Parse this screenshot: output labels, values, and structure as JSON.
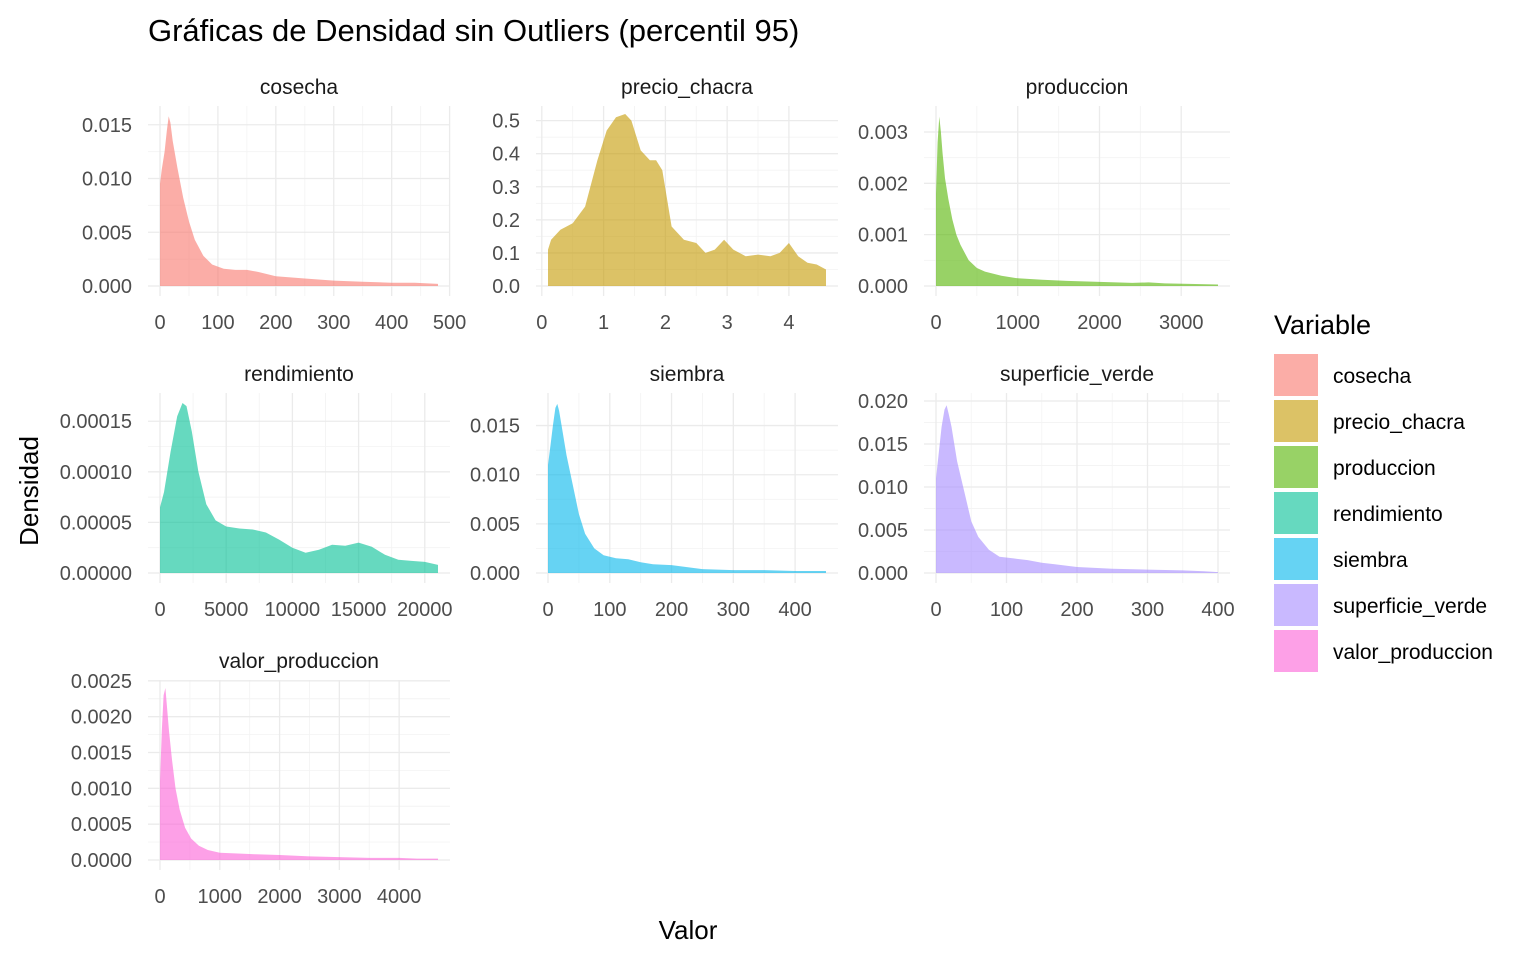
{
  "chart_data": {
    "type": "area",
    "title": "Gráficas de Densidad sin Outliers (percentil 95)",
    "xlabel": "Valor",
    "ylabel": "Densidad",
    "grid": true,
    "legend_title": "Variable",
    "legend_position": "right",
    "panels": [
      {
        "name": "cosecha",
        "color": "#F8766D",
        "xlim": [
          0,
          480
        ],
        "ylim": [
          0,
          0.016
        ],
        "xticks": [
          0,
          100,
          200,
          300,
          400,
          500
        ],
        "xtick_labels": [
          "0",
          "100",
          "200",
          "300",
          "400",
          "500"
        ],
        "yticks": [
          0,
          0.005,
          0.01,
          0.015
        ],
        "ytick_labels": [
          "0.000",
          "0.005",
          "0.010",
          "0.015"
        ],
        "x": [
          0,
          3,
          8,
          12,
          15,
          18,
          22,
          30,
          40,
          50,
          60,
          75,
          90,
          110,
          130,
          150,
          170,
          200,
          250,
          300,
          350,
          400,
          440,
          480
        ],
        "y": [
          0.0095,
          0.0108,
          0.0125,
          0.0145,
          0.0158,
          0.0152,
          0.0135,
          0.011,
          0.0082,
          0.006,
          0.0043,
          0.0028,
          0.002,
          0.0016,
          0.0015,
          0.0015,
          0.0013,
          0.0009,
          0.0007,
          0.0005,
          0.0004,
          0.0003,
          0.0003,
          0.0002
        ]
      },
      {
        "name": "precio_chacra",
        "color": "#C49A00",
        "xlim": [
          0.1,
          4.6
        ],
        "ylim": [
          0,
          0.52
        ],
        "xticks": [
          0,
          1,
          2,
          3,
          4
        ],
        "xtick_labels": [
          "0",
          "1",
          "2",
          "3",
          "4"
        ],
        "yticks": [
          0,
          0.1,
          0.2,
          0.3,
          0.4,
          0.5
        ],
        "ytick_labels": [
          "0.0",
          "0.1",
          "0.2",
          "0.3",
          "0.4",
          "0.5"
        ],
        "x": [
          0.1,
          0.15,
          0.3,
          0.5,
          0.7,
          0.9,
          1.05,
          1.2,
          1.35,
          1.45,
          1.6,
          1.75,
          1.85,
          1.95,
          2.1,
          2.3,
          2.5,
          2.65,
          2.8,
          2.95,
          3.1,
          3.3,
          3.5,
          3.7,
          3.85,
          4.0,
          4.15,
          4.3,
          4.45,
          4.6
        ],
        "y": [
          0.11,
          0.14,
          0.17,
          0.19,
          0.24,
          0.38,
          0.47,
          0.51,
          0.52,
          0.5,
          0.41,
          0.38,
          0.38,
          0.35,
          0.18,
          0.14,
          0.13,
          0.1,
          0.11,
          0.14,
          0.11,
          0.09,
          0.095,
          0.09,
          0.1,
          0.13,
          0.09,
          0.07,
          0.065,
          0.05
        ]
      },
      {
        "name": "produccion",
        "color": "#53B400",
        "xlim": [
          0,
          3450
        ],
        "ylim": [
          0,
          0.00335
        ],
        "xticks": [
          0,
          1000,
          2000,
          3000
        ],
        "xtick_labels": [
          "0",
          "1000",
          "2000",
          "3000"
        ],
        "yticks": [
          0,
          0.001,
          0.002,
          0.003
        ],
        "ytick_labels": [
          "0.000",
          "0.001",
          "0.002",
          "0.003"
        ],
        "x": [
          0,
          20,
          40,
          60,
          80,
          110,
          150,
          200,
          250,
          300,
          400,
          500,
          600,
          800,
          1000,
          1300,
          1600,
          2000,
          2400,
          2600,
          2800,
          3100,
          3450
        ],
        "y": [
          0.0018,
          0.0028,
          0.0033,
          0.003,
          0.0026,
          0.0021,
          0.0017,
          0.0013,
          0.001,
          0.0008,
          0.0005,
          0.00035,
          0.00028,
          0.0002,
          0.00015,
          0.00012,
          0.0001,
          8e-05,
          6e-05,
          7e-05,
          5e-05,
          4e-05,
          3e-05
        ]
      },
      {
        "name": "rendimiento",
        "color": "#00C094",
        "xlim": [
          0,
          21000
        ],
        "ylim": [
          0,
          0.00017
        ],
        "xticks": [
          0,
          5000,
          10000,
          15000,
          20000
        ],
        "xtick_labels": [
          "0",
          "5000",
          "10000",
          "15000",
          "20000"
        ],
        "yticks": [
          0,
          5e-05,
          0.0001,
          0.00015
        ],
        "ytick_labels": [
          "0.00000",
          "0.00005",
          "0.00010",
          "0.00015"
        ],
        "x": [
          0,
          300,
          800,
          1300,
          1700,
          2000,
          2400,
          2900,
          3500,
          4200,
          5000,
          6000,
          7000,
          8000,
          9000,
          10000,
          11000,
          12000,
          13000,
          14000,
          15000,
          16000,
          17000,
          18000,
          19000,
          20000,
          21000
        ],
        "y": [
          6.5e-05,
          8e-05,
          0.00012,
          0.000155,
          0.000168,
          0.000165,
          0.00014,
          0.0001,
          6.8e-05,
          5.2e-05,
          4.6e-05,
          4.4e-05,
          4.3e-05,
          4e-05,
          3.3e-05,
          2.5e-05,
          2e-05,
          2.3e-05,
          2.8e-05,
          2.7e-05,
          3e-05,
          2.6e-05,
          1.8e-05,
          1.3e-05,
          1.2e-05,
          1.1e-05,
          8e-06
        ]
      },
      {
        "name": "siembra",
        "color": "#00B6EB",
        "xlim": [
          0,
          450
        ],
        "ylim": [
          0,
          0.0175
        ],
        "xticks": [
          0,
          100,
          200,
          300,
          400
        ],
        "xtick_labels": [
          "0",
          "100",
          "200",
          "300",
          "400"
        ],
        "yticks": [
          0,
          0.005,
          0.01,
          0.015
        ],
        "ytick_labels": [
          "0.000",
          "0.005",
          "0.010",
          "0.015"
        ],
        "x": [
          0,
          4,
          8,
          12,
          15,
          18,
          22,
          30,
          40,
          50,
          60,
          75,
          90,
          110,
          130,
          150,
          170,
          200,
          250,
          300,
          350,
          400,
          450
        ],
        "y": [
          0.011,
          0.013,
          0.015,
          0.0168,
          0.0172,
          0.0165,
          0.015,
          0.012,
          0.009,
          0.006,
          0.004,
          0.0025,
          0.0018,
          0.0015,
          0.0014,
          0.0011,
          0.0009,
          0.0008,
          0.0004,
          0.0003,
          0.0003,
          0.0002,
          0.0002
        ]
      },
      {
        "name": "superficie_verde",
        "color": "#A58AFF",
        "xlim": [
          0,
          400
        ],
        "ylim": [
          0,
          0.02
        ],
        "xticks": [
          0,
          100,
          200,
          300,
          400
        ],
        "xtick_labels": [
          "0",
          "100",
          "200",
          "300",
          "400"
        ],
        "yticks": [
          0,
          0.005,
          0.01,
          0.015,
          0.02
        ],
        "ytick_labels": [
          "0.000",
          "0.005",
          "0.010",
          "0.015",
          "0.020"
        ],
        "x": [
          0,
          4,
          8,
          12,
          15,
          18,
          22,
          30,
          40,
          50,
          60,
          75,
          90,
          110,
          130,
          150,
          170,
          200,
          250,
          300,
          350,
          380,
          400
        ],
        "y": [
          0.011,
          0.014,
          0.017,
          0.019,
          0.0195,
          0.0185,
          0.017,
          0.013,
          0.0095,
          0.006,
          0.0042,
          0.0027,
          0.0019,
          0.0017,
          0.0015,
          0.0012,
          0.001,
          0.0007,
          0.0005,
          0.0004,
          0.0003,
          0.0002,
          0.0001
        ]
      },
      {
        "name": "valor_produccion",
        "color": "#FB61D7",
        "xlim": [
          0,
          4650
        ],
        "ylim": [
          0,
          0.0024
        ],
        "xticks": [
          0,
          1000,
          2000,
          3000,
          4000
        ],
        "xtick_labels": [
          "0",
          "1000",
          "2000",
          "3000",
          "4000"
        ],
        "yticks": [
          0,
          0.0005,
          0.001,
          0.0015,
          0.002,
          0.0025
        ],
        "ytick_labels": [
          "0.0000",
          "0.0005",
          "0.0010",
          "0.0015",
          "0.0020",
          "0.0025"
        ],
        "x": [
          0,
          30,
          60,
          90,
          110,
          150,
          200,
          260,
          330,
          420,
          520,
          650,
          800,
          1000,
          1300,
          1600,
          2000,
          2500,
          3000,
          3500,
          4000,
          4300,
          4650
        ],
        "y": [
          0.0011,
          0.0018,
          0.0023,
          0.0024,
          0.0022,
          0.0018,
          0.0014,
          0.001,
          0.0007,
          0.00045,
          0.0003,
          0.0002,
          0.00014,
          0.0001,
          9e-05,
          8e-05,
          7e-05,
          5e-05,
          4e-05,
          3e-05,
          3e-05,
          2e-05,
          2e-05
        ]
      }
    ]
  }
}
